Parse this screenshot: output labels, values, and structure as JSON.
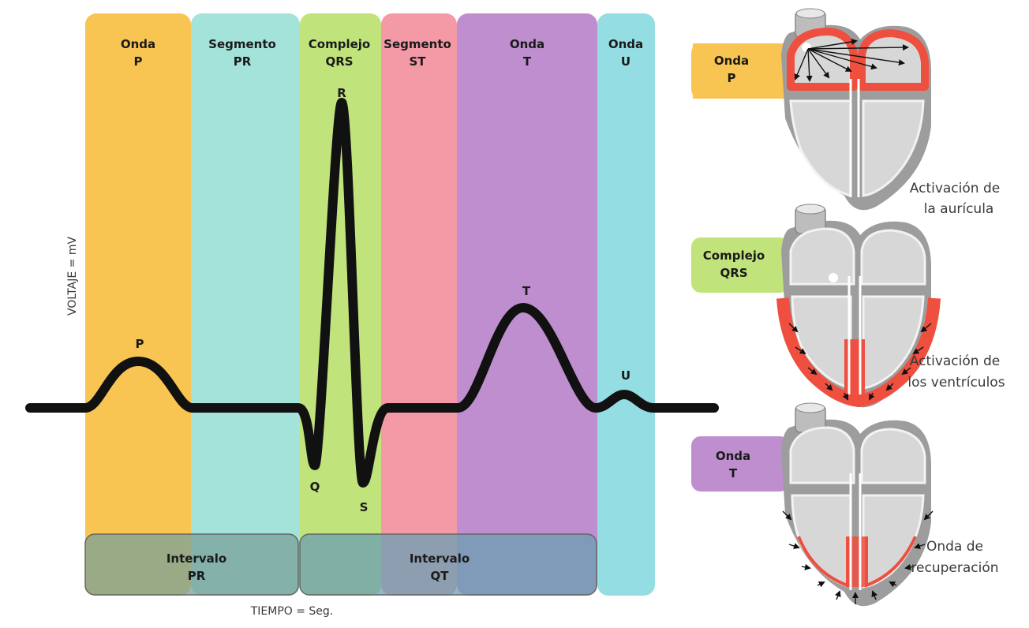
{
  "colors": {
    "p_wave": "#f9c552",
    "pr_segment": "#a3e3d9",
    "qrs_complex": "#c1e37b",
    "st_segment": "#f49aa7",
    "t_wave": "#be8ecf",
    "u_wave": "#94dde3",
    "pr_interval": "#7aa098",
    "qt_interval": "#6a9fb2",
    "ecg_trace": "#111111",
    "activation": "#ee4f3f",
    "heart_tissue": "#9d9d9d",
    "heart_chamber": "#d7d7d7"
  },
  "bands": [
    {
      "line1": "Onda",
      "line2": "P"
    },
    {
      "line1": "Segmento",
      "line2": "PR"
    },
    {
      "line1": "Complejo",
      "line2": "QRS"
    },
    {
      "line1": "Segmento",
      "line2": "ST"
    },
    {
      "line1": "Onda",
      "line2": "T"
    },
    {
      "line1": "Onda",
      "line2": "U"
    }
  ],
  "intervals": [
    {
      "line1": "Intervalo",
      "line2": "PR"
    },
    {
      "line1": "Intervalo",
      "line2": "QT"
    }
  ],
  "wave_labels": {
    "p": "P",
    "q": "Q",
    "r": "R",
    "s": "S",
    "t": "T",
    "u": "U"
  },
  "axes": {
    "y_label": "VOLTAJE = mV",
    "x_label": "TIEMPO = Seg."
  },
  "hearts": [
    {
      "tab_line1": "Onda",
      "tab_line2": "P",
      "caption_line1": "Activación de",
      "caption_line2": "la aurícula"
    },
    {
      "tab_line1": "Complejo",
      "tab_line2": "QRS",
      "caption_line1": "Activación de",
      "caption_line2": "los ventrículos"
    },
    {
      "tab_line1": "Onda",
      "tab_line2": "T",
      "caption_line1": "Onda de",
      "caption_line2": "recuperación"
    }
  ]
}
